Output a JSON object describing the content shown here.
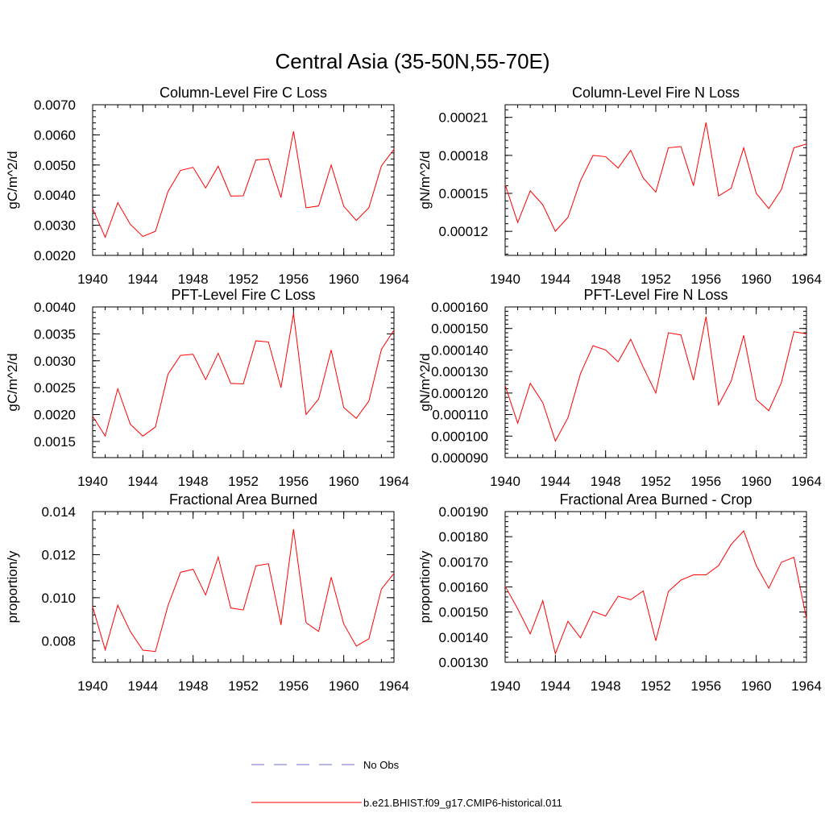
{
  "title": "Central Asia (35-50N,55-70E)",
  "colors": {
    "model_line": "#ff0000",
    "obs_line": "#6f6fd0",
    "axis": "#000000"
  },
  "legend": {
    "obs_label": "No Obs",
    "model_label": "b.e21.BHIST.f09_g17.CMIP6-historical.011"
  },
  "chart_data": [
    {
      "type": "line",
      "title": "Column-Level Fire C Loss",
      "ylabel": "gC/m^2/d",
      "xlim": [
        1940,
        1964
      ],
      "ylim": [
        0.002,
        0.007
      ],
      "xticks": [
        1940,
        1944,
        1948,
        1952,
        1956,
        1960,
        1964
      ],
      "yticks": [
        "0.0020",
        "0.0030",
        "0.0040",
        "0.0050",
        "0.0060",
        "0.0070"
      ],
      "x": [
        1940,
        1941,
        1942,
        1943,
        1944,
        1945,
        1946,
        1947,
        1948,
        1949,
        1950,
        1951,
        1952,
        1953,
        1954,
        1955,
        1956,
        1957,
        1958,
        1959,
        1960,
        1961,
        1962,
        1963,
        1964
      ],
      "series": [
        {
          "name": "b.e21.BHIST.f09_g17.CMIP6-historical.011",
          "values": [
            0.00355,
            0.0026,
            0.00375,
            0.00303,
            0.00263,
            0.0028,
            0.00412,
            0.00482,
            0.00492,
            0.00424,
            0.00496,
            0.00397,
            0.00398,
            0.00517,
            0.0052,
            0.00392,
            0.00612,
            0.00358,
            0.00364,
            0.005,
            0.00363,
            0.00316,
            0.00358,
            0.00497,
            0.00552
          ]
        }
      ]
    },
    {
      "type": "line",
      "title": "Column-Level Fire N Loss",
      "ylabel": "gN/m^2/d",
      "xlim": [
        1940,
        1964
      ],
      "ylim": [
        0.000101,
        0.00022
      ],
      "xticks": [
        1940,
        1944,
        1948,
        1952,
        1956,
        1960,
        1964
      ],
      "yticks": [
        "0.00012",
        "0.00015",
        "0.00018",
        "0.00021"
      ],
      "x": [
        1940,
        1941,
        1942,
        1943,
        1944,
        1945,
        1946,
        1947,
        1948,
        1949,
        1950,
        1951,
        1952,
        1953,
        1954,
        1955,
        1956,
        1957,
        1958,
        1959,
        1960,
        1961,
        1962,
        1963,
        1964
      ],
      "series": [
        {
          "name": "b.e21.BHIST.f09_g17.CMIP6-historical.011",
          "values": [
            0.000157,
            0.000127,
            0.000152,
            0.000141,
            0.00012,
            0.000131,
            0.00016,
            0.00018,
            0.000179,
            0.00017,
            0.000184,
            0.000162,
            0.000151,
            0.000186,
            0.000187,
            0.000156,
            0.000206,
            0.000148,
            0.000154,
            0.000186,
            0.00015,
            0.000138,
            0.000153,
            0.000186,
            0.000189
          ]
        }
      ]
    },
    {
      "type": "line",
      "title": "PFT-Level Fire C Loss",
      "ylabel": "gC/m^2/d",
      "xlim": [
        1940,
        1964
      ],
      "ylim": [
        0.0012,
        0.004
      ],
      "xticks": [
        1940,
        1944,
        1948,
        1952,
        1956,
        1960,
        1964
      ],
      "yticks": [
        "0.0015",
        "0.0020",
        "0.0025",
        "0.0030",
        "0.0035",
        "0.0040"
      ],
      "x": [
        1940,
        1941,
        1942,
        1943,
        1944,
        1945,
        1946,
        1947,
        1948,
        1949,
        1950,
        1951,
        1952,
        1953,
        1954,
        1955,
        1956,
        1957,
        1958,
        1959,
        1960,
        1961,
        1962,
        1963,
        1964
      ],
      "series": [
        {
          "name": "b.e21.BHIST.f09_g17.CMIP6-historical.011",
          "values": [
            0.00197,
            0.0016,
            0.00248,
            0.00182,
            0.0016,
            0.00177,
            0.00275,
            0.0031,
            0.00312,
            0.00265,
            0.00314,
            0.00258,
            0.00257,
            0.00337,
            0.00335,
            0.0025,
            0.00388,
            0.002,
            0.00229,
            0.0032,
            0.00213,
            0.00193,
            0.00225,
            0.00321,
            0.00357
          ]
        }
      ]
    },
    {
      "type": "line",
      "title": "PFT-Level Fire N Loss",
      "ylabel": "gN/m^2/d",
      "xlim": [
        1940,
        1964
      ],
      "ylim": [
        9e-05,
        0.00016
      ],
      "xticks": [
        1940,
        1944,
        1948,
        1952,
        1956,
        1960,
        1964
      ],
      "yticks": [
        "0.000090",
        "0.000100",
        "0.000110",
        "0.000120",
        "0.000130",
        "0.000140",
        "0.000150",
        "0.000160"
      ],
      "x": [
        1940,
        1941,
        1942,
        1943,
        1944,
        1945,
        1946,
        1947,
        1948,
        1949,
        1950,
        1951,
        1952,
        1953,
        1954,
        1955,
        1956,
        1957,
        1958,
        1959,
        1960,
        1961,
        1962,
        1963,
        1964
      ],
      "series": [
        {
          "name": "b.e21.BHIST.f09_g17.CMIP6-historical.011",
          "values": [
            0.0001235,
            0.000106,
            0.0001245,
            0.0001155,
            9.77e-05,
            0.0001085,
            0.000129,
            0.000142,
            0.00014,
            0.0001345,
            0.000145,
            0.000132,
            0.00012,
            0.000148,
            0.000147,
            0.000126,
            0.0001555,
            0.0001145,
            0.0001255,
            0.0001468,
            0.000117,
            0.0001118,
            0.0001248,
            0.0001485,
            0.0001475
          ]
        }
      ]
    },
    {
      "type": "line",
      "title": "Fractional Area Burned",
      "ylabel": "proportion/y",
      "xlim": [
        1940,
        1964
      ],
      "ylim": [
        0.007,
        0.014
      ],
      "xticks": [
        1940,
        1944,
        1948,
        1952,
        1956,
        1960,
        1964
      ],
      "yticks": [
        "0.008",
        "0.010",
        "0.012",
        "0.014"
      ],
      "x": [
        1940,
        1941,
        1942,
        1943,
        1944,
        1945,
        1946,
        1947,
        1948,
        1949,
        1950,
        1951,
        1952,
        1953,
        1954,
        1955,
        1956,
        1957,
        1958,
        1959,
        1960,
        1961,
        1962,
        1963,
        1964
      ],
      "series": [
        {
          "name": "b.e21.BHIST.f09_g17.CMIP6-historical.011",
          "values": [
            0.00958,
            0.00758,
            0.00965,
            0.00843,
            0.00756,
            0.0075,
            0.00963,
            0.01118,
            0.01132,
            0.01013,
            0.01189,
            0.00952,
            0.00943,
            0.01148,
            0.01158,
            0.00874,
            0.01318,
            0.00884,
            0.00843,
            0.01095,
            0.00878,
            0.00775,
            0.00809,
            0.0104,
            0.01113
          ]
        }
      ]
    },
    {
      "type": "line",
      "title": "Fractional Area Burned - Crop",
      "ylabel": "proportion/y",
      "xlim": [
        1940,
        1964
      ],
      "ylim": [
        0.0013,
        0.0019
      ],
      "xticks": [
        1940,
        1944,
        1948,
        1952,
        1956,
        1960,
        1964
      ],
      "yticks": [
        "0.00130",
        "0.00140",
        "0.00150",
        "0.00160",
        "0.00170",
        "0.00180",
        "0.00190"
      ],
      "x": [
        1940,
        1941,
        1942,
        1943,
        1944,
        1945,
        1946,
        1947,
        1948,
        1949,
        1950,
        1951,
        1952,
        1953,
        1954,
        1955,
        1956,
        1957,
        1958,
        1959,
        1960,
        1961,
        1962,
        1963,
        1964
      ],
      "series": [
        {
          "name": "b.e21.BHIST.f09_g17.CMIP6-historical.011",
          "values": [
            0.001603,
            0.001513,
            0.001413,
            0.001545,
            0.001334,
            0.001463,
            0.001397,
            0.001503,
            0.001484,
            0.001563,
            0.001549,
            0.001584,
            0.001386,
            0.001582,
            0.001627,
            0.001648,
            0.001648,
            0.001685,
            0.001769,
            0.001823,
            0.001685,
            0.001595,
            0.001698,
            0.001718,
            0.001475
          ]
        }
      ]
    }
  ]
}
